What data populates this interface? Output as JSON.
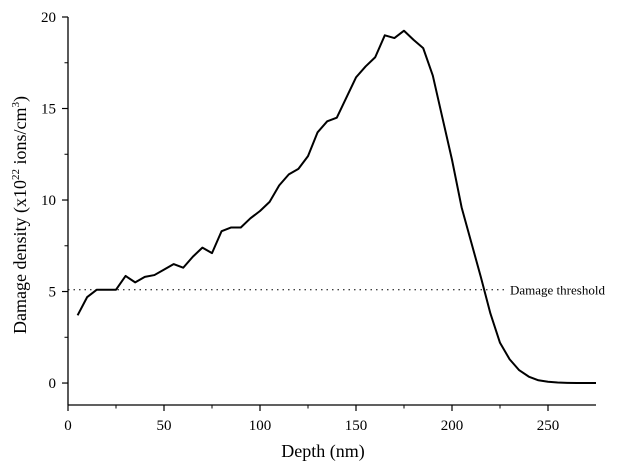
{
  "chart_data": {
    "type": "line",
    "title": "",
    "xlabel": "Depth (nm)",
    "ylabel": {
      "prefix": "Damage density (x10",
      "exp1": "22",
      "middle": " ions/cm",
      "exp2": "3",
      "suffix": ")"
    },
    "xlim": [
      0,
      275
    ],
    "ylim": [
      -1.2,
      20
    ],
    "x_ticks": [
      0,
      50,
      100,
      150,
      200,
      250
    ],
    "y_ticks": [
      0,
      5,
      10,
      15,
      20
    ],
    "grid": false,
    "legend": "none",
    "series": [
      {
        "x": [
          5,
          10,
          15,
          20,
          25,
          30,
          35,
          40,
          45,
          50,
          55,
          60,
          65,
          70,
          75,
          80,
          85,
          90,
          95,
          100,
          105,
          110,
          115,
          120,
          125,
          130,
          135,
          140,
          145,
          150,
          155,
          160,
          165,
          170,
          175,
          180,
          185,
          190,
          195,
          200,
          205,
          210,
          215,
          220,
          225,
          230,
          235,
          240,
          245,
          250,
          255,
          260,
          265,
          270,
          275
        ],
        "y": [
          3.7,
          4.7,
          5.1,
          5.1,
          5.1,
          5.85,
          5.5,
          5.8,
          5.9,
          6.2,
          6.5,
          6.3,
          6.9,
          7.4,
          7.1,
          8.3,
          8.5,
          8.5,
          9.0,
          9.4,
          9.9,
          10.8,
          11.4,
          11.7,
          12.4,
          13.7,
          14.3,
          14.5,
          15.6,
          16.7,
          17.3,
          17.8,
          19.0,
          18.85,
          19.25,
          18.75,
          18.3,
          16.8,
          14.5,
          12.2,
          9.6,
          7.7,
          5.8,
          3.8,
          2.2,
          1.3,
          0.7,
          0.35,
          0.15,
          0.07,
          0.03,
          0.01,
          0.0,
          0.0,
          0.0
        ],
        "color": "#000000"
      }
    ],
    "annotations": [
      {
        "text": "Damage threshold",
        "y": 5.1,
        "style": "dotted"
      }
    ]
  }
}
